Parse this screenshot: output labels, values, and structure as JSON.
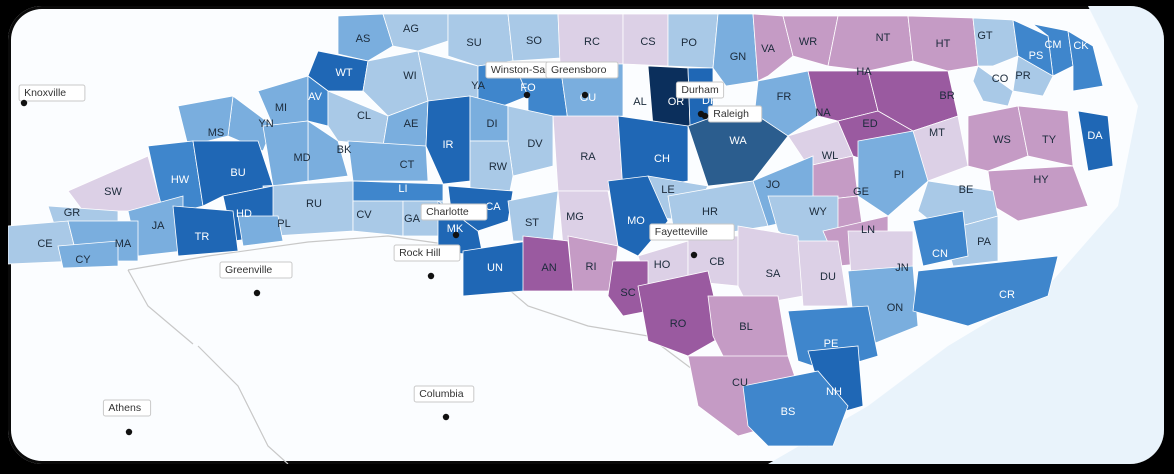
{
  "colors": {
    "c1": "#dcd0e6",
    "c2": "#c59bc5",
    "c3": "#9a5aa0",
    "c4": "#a9c9e7",
    "c5": "#7aaede",
    "c6": "#3f86cc",
    "c7": "#1f67b5",
    "c8": "#0b2f5c",
    "c9": "#2b5d8e"
  },
  "cities": [
    {
      "name": "Knoxville"
    },
    {
      "name": "Greenville"
    },
    {
      "name": "Athens"
    },
    {
      "name": "Columbia"
    },
    {
      "name": "Rock Hill"
    },
    {
      "name": "Charlotte"
    },
    {
      "name": "Winston-Sal"
    },
    {
      "name": "Greensboro"
    },
    {
      "name": "Durham"
    },
    {
      "name": "Raleigh"
    },
    {
      "name": "Fayetteville"
    }
  ],
  "counties": [
    {
      "abbr": "AS",
      "fill": "c5"
    },
    {
      "abbr": "AG",
      "fill": "c4"
    },
    {
      "abbr": "SU",
      "fill": "c4"
    },
    {
      "abbr": "SO",
      "fill": "c4"
    },
    {
      "abbr": "RC",
      "fill": "c1"
    },
    {
      "abbr": "CS",
      "fill": "c1"
    },
    {
      "abbr": "PO",
      "fill": "c4"
    },
    {
      "abbr": "GN",
      "fill": "c5"
    },
    {
      "abbr": "VA",
      "fill": "c2"
    },
    {
      "abbr": "WR",
      "fill": "c2"
    },
    {
      "abbr": "NT",
      "fill": "c2"
    },
    {
      "abbr": "HT",
      "fill": "c2"
    },
    {
      "abbr": "GT",
      "fill": "c4"
    },
    {
      "abbr": "CM",
      "fill": "c6"
    },
    {
      "abbr": "CK",
      "fill": "c6"
    },
    {
      "abbr": "PS",
      "fill": "c6"
    },
    {
      "abbr": "PR",
      "fill": "c4"
    },
    {
      "abbr": "CO",
      "fill": "c4"
    },
    {
      "abbr": "WT",
      "fill": "c7"
    },
    {
      "abbr": "WI",
      "fill": "c4"
    },
    {
      "abbr": "YA",
      "fill": "c4"
    },
    {
      "abbr": "FO",
      "fill": "c6"
    },
    {
      "abbr": "GU",
      "fill": "c6"
    },
    {
      "abbr": "AL",
      "fill": "c5"
    },
    {
      "abbr": "OR",
      "fill": "c8"
    },
    {
      "abbr": "DH",
      "fill": "c7"
    },
    {
      "abbr": "FR",
      "fill": "c5"
    },
    {
      "abbr": "HA",
      "fill": "c3"
    },
    {
      "abbr": "BR",
      "fill": "c3"
    },
    {
      "abbr": "MI",
      "fill": "c5"
    },
    {
      "abbr": "AV",
      "fill": "c6"
    },
    {
      "abbr": "YN",
      "fill": "c5"
    },
    {
      "abbr": "MS",
      "fill": "c5"
    },
    {
      "abbr": "CL",
      "fill": "c4"
    },
    {
      "abbr": "AE",
      "fill": "c5"
    },
    {
      "abbr": "IR",
      "fill": "c7"
    },
    {
      "abbr": "DI",
      "fill": "c5"
    },
    {
      "abbr": "DV",
      "fill": "c4"
    },
    {
      "abbr": "NA",
      "fill": "c1"
    },
    {
      "abbr": "ED",
      "fill": "c3"
    },
    {
      "abbr": "MT",
      "fill": "c1"
    },
    {
      "abbr": "WS",
      "fill": "c2"
    },
    {
      "abbr": "TY",
      "fill": "c2"
    },
    {
      "abbr": "BK",
      "fill": "c5"
    },
    {
      "abbr": "MD",
      "fill": "c5"
    },
    {
      "abbr": "CT",
      "fill": "c5"
    },
    {
      "abbr": "RW",
      "fill": "c4"
    },
    {
      "abbr": "RA",
      "fill": "c1"
    },
    {
      "abbr": "CH",
      "fill": "c7"
    },
    {
      "abbr": "WA",
      "fill": "c9"
    },
    {
      "abbr": "HW",
      "fill": "c6"
    },
    {
      "abbr": "BU",
      "fill": "c7"
    },
    {
      "abbr": "WL",
      "fill": "c2"
    },
    {
      "abbr": "PI",
      "fill": "c5"
    },
    {
      "abbr": "HY",
      "fill": "c2"
    },
    {
      "abbr": "DA",
      "fill": "c7"
    },
    {
      "abbr": "SW",
      "fill": "c1"
    },
    {
      "abbr": "LI",
      "fill": "c6"
    },
    {
      "abbr": "JO",
      "fill": "c5"
    },
    {
      "abbr": "LE",
      "fill": "c4"
    },
    {
      "abbr": "GE",
      "fill": "c2"
    },
    {
      "abbr": "BE",
      "fill": "c4"
    },
    {
      "abbr": "GR",
      "fill": "c4"
    },
    {
      "abbr": "RU",
      "fill": "c4"
    },
    {
      "abbr": "CV",
      "fill": "c4"
    },
    {
      "abbr": "GA",
      "fill": "c4"
    },
    {
      "abbr": "CA",
      "fill": "c7"
    },
    {
      "abbr": "HD",
      "fill": "c7"
    },
    {
      "abbr": "JA",
      "fill": "c5"
    },
    {
      "abbr": "TR",
      "fill": "c7"
    },
    {
      "abbr": "PL",
      "fill": "c5"
    },
    {
      "abbr": "ST",
      "fill": "c4"
    },
    {
      "abbr": "MG",
      "fill": "c1"
    },
    {
      "abbr": "MO",
      "fill": "c7"
    },
    {
      "abbr": "HR",
      "fill": "c4"
    },
    {
      "abbr": "WY",
      "fill": "c4"
    },
    {
      "abbr": "LN",
      "fill": "c2"
    },
    {
      "abbr": "PA",
      "fill": "c4"
    },
    {
      "abbr": "CE",
      "fill": "c4"
    },
    {
      "abbr": "MA",
      "fill": "c5"
    },
    {
      "abbr": "MK",
      "fill": "c7"
    },
    {
      "abbr": "CY",
      "fill": "c5"
    },
    {
      "abbr": "UN",
      "fill": "c7"
    },
    {
      "abbr": "AN",
      "fill": "c3"
    },
    {
      "abbr": "RI",
      "fill": "c2"
    },
    {
      "abbr": "HO",
      "fill": "c1"
    },
    {
      "abbr": "CB",
      "fill": "c1"
    },
    {
      "abbr": "SA",
      "fill": "c1"
    },
    {
      "abbr": "DU",
      "fill": "c1"
    },
    {
      "abbr": "JN",
      "fill": "c1"
    },
    {
      "abbr": "CN",
      "fill": "c6"
    },
    {
      "abbr": "SC",
      "fill": "c3"
    },
    {
      "abbr": "RO",
      "fill": "c3"
    },
    {
      "abbr": "BL",
      "fill": "c2"
    },
    {
      "abbr": "ON",
      "fill": "c5"
    },
    {
      "abbr": "CR",
      "fill": "c6"
    },
    {
      "abbr": "PE",
      "fill": "c6"
    },
    {
      "abbr": "CU",
      "fill": "c2"
    },
    {
      "abbr": "NH",
      "fill": "c7"
    },
    {
      "abbr": "BS",
      "fill": "c6"
    }
  ]
}
